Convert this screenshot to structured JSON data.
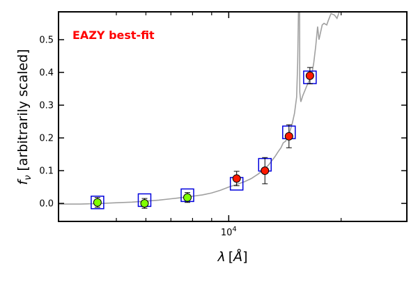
{
  "chart_data": {
    "type": "scatter",
    "annotation": "EAZY best-fit",
    "colors": {
      "annotation": "#ff0000",
      "model_line": "#a0a0a0",
      "model_box": "#0000dd",
      "detected": "#ff1a00",
      "upper_limit": "#7fff00",
      "axes": "#000000"
    },
    "xlabel": "λ [Å]",
    "xlabel_parts": {
      "symbol": "λ",
      "unit": "Å"
    },
    "ylabel": "f_ν [arbitrarily scaled]",
    "ylabel_parts": {
      "symbol": "f",
      "subscript": "ν",
      "text": "[arbitrarily scaled]"
    },
    "xscale": "log",
    "xlim": [
      3500,
      30000
    ],
    "ylim": [
      -0.055,
      0.585
    ],
    "y_ticks": [
      0.0,
      0.1,
      0.2,
      0.3,
      0.4,
      0.5
    ],
    "y_tick_labels": [
      "0.0",
      "0.1",
      "0.2",
      "0.3",
      "0.4",
      "0.5"
    ],
    "x_major_ticks": [
      {
        "value": 10000,
        "base": "10",
        "exp": "4"
      }
    ],
    "x_minor_ticks": [
      5000,
      6000,
      7000,
      8000,
      9000,
      20000
    ],
    "grid": false,
    "model_photometry": [
      {
        "x": 4450,
        "y": 0.003
      },
      {
        "x": 5950,
        "y": 0.01
      },
      {
        "x": 7750,
        "y": 0.025
      },
      {
        "x": 10500,
        "y": 0.06
      },
      {
        "x": 12500,
        "y": 0.118
      },
      {
        "x": 14500,
        "y": 0.217
      },
      {
        "x": 16500,
        "y": 0.385
      }
    ],
    "observed": [
      {
        "x": 4450,
        "y": 0.003,
        "yerr": 0.015,
        "kind": "upper_limit"
      },
      {
        "x": 5950,
        "y": 0.0,
        "yerr": 0.015,
        "kind": "upper_limit"
      },
      {
        "x": 7750,
        "y": 0.018,
        "yerr": 0.015,
        "kind": "upper_limit"
      },
      {
        "x": 10500,
        "y": 0.076,
        "yerr": 0.022,
        "kind": "detected"
      },
      {
        "x": 12500,
        "y": 0.1,
        "yerr": 0.04,
        "kind": "detected"
      },
      {
        "x": 14500,
        "y": 0.205,
        "yerr": 0.035,
        "kind": "detected"
      },
      {
        "x": 16500,
        "y": 0.39,
        "yerr": 0.025,
        "kind": "detected"
      }
    ],
    "model_sed": [
      [
        3500,
        -0.002
      ],
      [
        4000,
        -0.002
      ],
      [
        4300,
        -0.001
      ],
      [
        4600,
        0.0
      ],
      [
        5000,
        0.002
      ],
      [
        5500,
        0.004
      ],
      [
        6000,
        0.007
      ],
      [
        6500,
        0.01
      ],
      [
        7000,
        0.014
      ],
      [
        7500,
        0.018
      ],
      [
        8000,
        0.022
      ],
      [
        8500,
        0.026
      ],
      [
        9000,
        0.032
      ],
      [
        9500,
        0.04
      ],
      [
        10000,
        0.05
      ],
      [
        10500,
        0.058
      ],
      [
        11000,
        0.066
      ],
      [
        11500,
        0.076
      ],
      [
        12000,
        0.09
      ],
      [
        12500,
        0.106
      ],
      [
        12800,
        0.118
      ],
      [
        13000,
        0.128
      ],
      [
        13300,
        0.143
      ],
      [
        13600,
        0.16
      ],
      [
        13800,
        0.17
      ],
      [
        14000,
        0.185
      ],
      [
        14200,
        0.19
      ],
      [
        14500,
        0.21
      ],
      [
        14800,
        0.245
      ],
      [
        15000,
        0.275
      ],
      [
        15200,
        0.325
      ],
      [
        15300,
        0.43
      ],
      [
        15350,
        0.54
      ],
      [
        15380,
        0.6
      ],
      [
        15480,
        0.6
      ],
      [
        15500,
        0.34
      ],
      [
        15600,
        0.31
      ],
      [
        15800,
        0.33
      ],
      [
        16000,
        0.345
      ],
      [
        16200,
        0.36
      ],
      [
        16500,
        0.38
      ],
      [
        16700,
        0.395
      ],
      [
        16900,
        0.43
      ],
      [
        17100,
        0.48
      ],
      [
        17300,
        0.54
      ],
      [
        17450,
        0.5
      ],
      [
        17600,
        0.52
      ],
      [
        17800,
        0.545
      ],
      [
        18000,
        0.55
      ],
      [
        18300,
        0.545
      ],
      [
        18500,
        0.56
      ],
      [
        18800,
        0.58
      ],
      [
        19200,
        0.575
      ],
      [
        19500,
        0.565
      ],
      [
        20000,
        0.6
      ]
    ]
  }
}
